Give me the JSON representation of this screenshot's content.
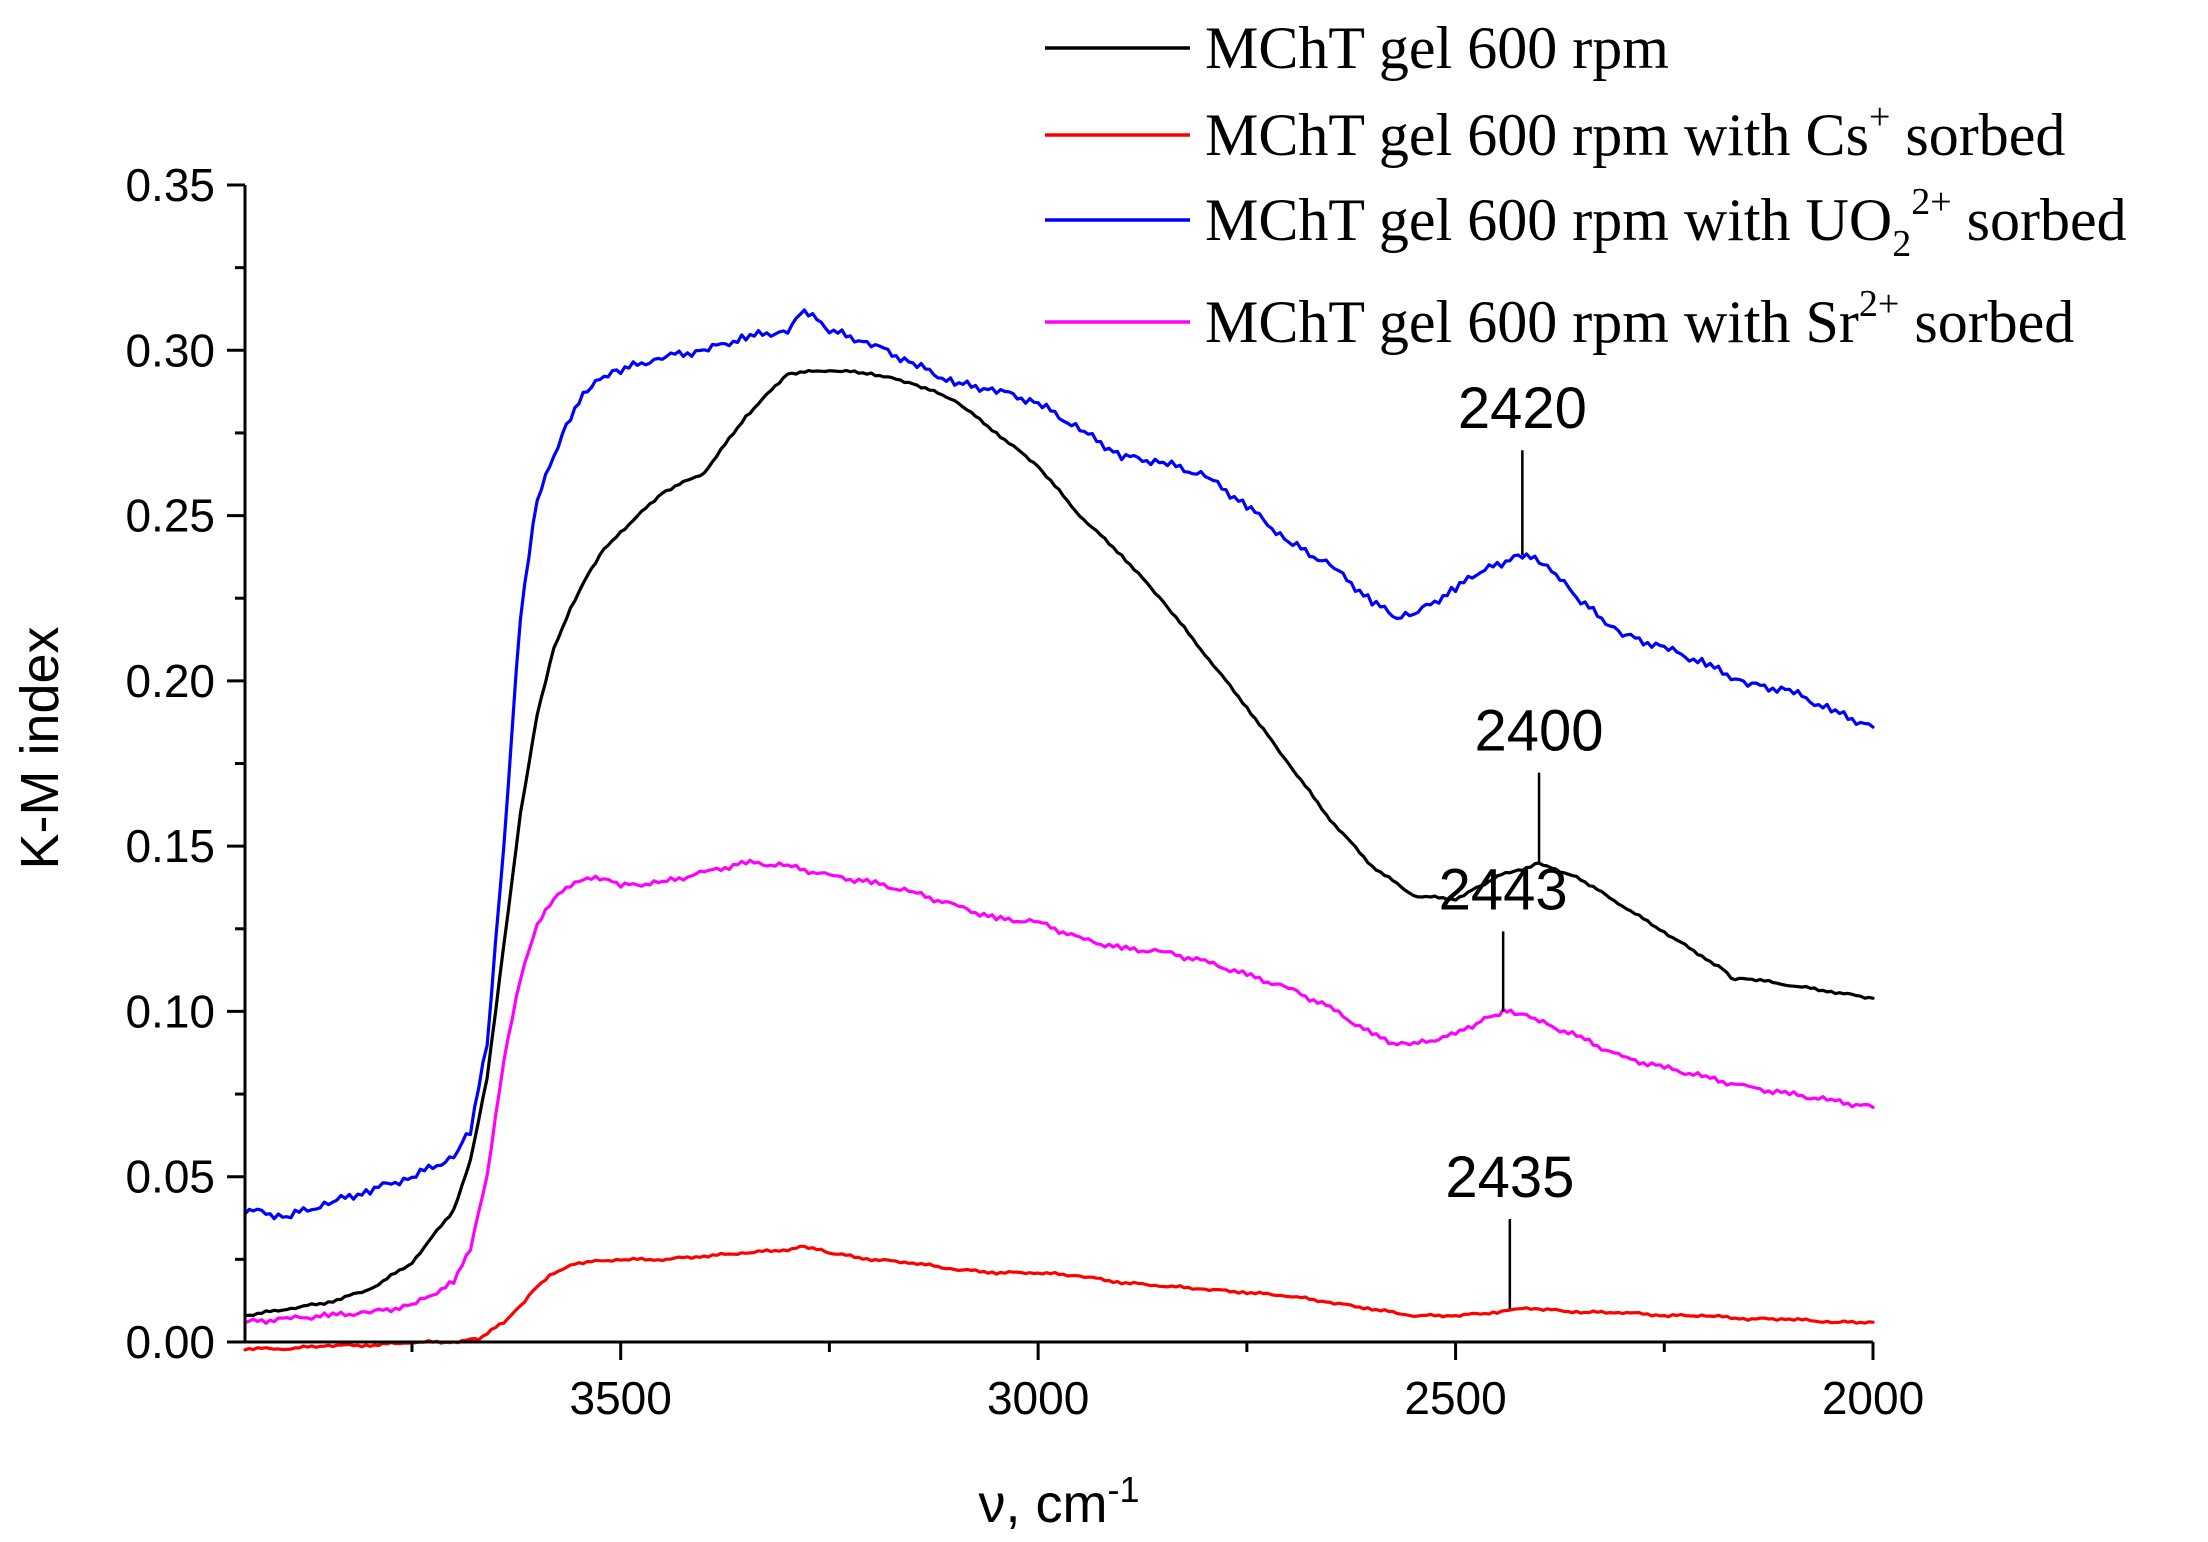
{
  "chart_data": {
    "type": "line",
    "title": "",
    "xlabel": "ν, cm",
    "xlabel_sup": "-1",
    "ylabel": "K-M index",
    "xlim": [
      3950,
      2000
    ],
    "ylim": [
      0,
      0.35
    ],
    "x_ticks": [
      3500,
      3000,
      2500,
      2000
    ],
    "x_tick_labels": [
      "3500",
      "3000",
      "2500",
      "2000"
    ],
    "x_minor_ticks": [
      3750,
      3250,
      2750,
      2250
    ],
    "y_ticks": [
      0,
      0.05,
      0.1,
      0.15,
      0.2,
      0.25,
      0.3,
      0.35
    ],
    "y_tick_labels": [
      "0.00",
      "0.05",
      "0.10",
      "0.15",
      "0.20",
      "0.25",
      "0.30",
      "0.35"
    ],
    "grid": false,
    "legend_position": "top-right",
    "series": [
      {
        "name": "MChT gel 600 rpm",
        "label_main": "MChT gel 600 rpm",
        "label_tail": "",
        "color": "#000000",
        "x": [
          3950,
          3900,
          3850,
          3800,
          3750,
          3700,
          3680,
          3660,
          3640,
          3620,
          3600,
          3580,
          3560,
          3540,
          3520,
          3500,
          3450,
          3400,
          3350,
          3300,
          3250,
          3200,
          3150,
          3100,
          3050,
          3000,
          2950,
          2900,
          2850,
          2800,
          2750,
          2700,
          2650,
          2600,
          2550,
          2500,
          2470,
          2440,
          2420,
          2400,
          2380,
          2350,
          2300,
          2250,
          2200,
          2175,
          2170,
          2150,
          2100,
          2050,
          2000
        ],
        "y": [
          0.008,
          0.01,
          0.012,
          0.016,
          0.024,
          0.04,
          0.055,
          0.08,
          0.12,
          0.16,
          0.19,
          0.21,
          0.222,
          0.232,
          0.24,
          0.245,
          0.257,
          0.263,
          0.28,
          0.293,
          0.294,
          0.293,
          0.29,
          0.285,
          0.275,
          0.265,
          0.25,
          0.238,
          0.224,
          0.208,
          0.192,
          0.175,
          0.158,
          0.144,
          0.135,
          0.134,
          0.138,
          0.142,
          0.143,
          0.145,
          0.143,
          0.14,
          0.132,
          0.124,
          0.116,
          0.112,
          0.11,
          0.11,
          0.108,
          0.106,
          0.104
        ]
      },
      {
        "name": "MChT gel 600 rpm with Cs+ sorbed",
        "label_main": "MChT gel 600 rpm with Cs",
        "label_sup": "+",
        "label_tail": " sorbed",
        "color": "#ff0000",
        "x": [
          3950,
          3900,
          3850,
          3800,
          3750,
          3700,
          3670,
          3640,
          3620,
          3600,
          3580,
          3550,
          3500,
          3450,
          3400,
          3350,
          3300,
          3280,
          3250,
          3200,
          3150,
          3100,
          3050,
          3000,
          2950,
          2900,
          2850,
          2800,
          2750,
          2700,
          2650,
          2600,
          2550,
          2500,
          2450,
          2435,
          2400,
          2350,
          2300,
          2250,
          2200,
          2150,
          2100,
          2050,
          2000
        ],
        "y": [
          -0.002,
          -0.002,
          -0.001,
          -0.001,
          0,
          0,
          0.001,
          0.006,
          0.011,
          0.017,
          0.021,
          0.024,
          0.025,
          0.025,
          0.026,
          0.027,
          0.028,
          0.029,
          0.027,
          0.025,
          0.024,
          0.022,
          0.021,
          0.021,
          0.02,
          0.018,
          0.017,
          0.016,
          0.015,
          0.014,
          0.012,
          0.01,
          0.008,
          0.008,
          0.009,
          0.01,
          0.01,
          0.009,
          0.009,
          0.008,
          0.008,
          0.007,
          0.007,
          0.006,
          0.006
        ]
      },
      {
        "name": "MChT gel 600 rpm with UO2 2+ sorbed",
        "label_main": "MChT gel 600 rpm with UO",
        "label_sub": "2",
        "label_sup": "2+",
        "label_tail": " sorbed",
        "color": "#0000ff",
        "x": [
          3950,
          3900,
          3850,
          3800,
          3750,
          3700,
          3680,
          3660,
          3640,
          3620,
          3600,
          3580,
          3560,
          3540,
          3520,
          3500,
          3450,
          3400,
          3350,
          3300,
          3280,
          3250,
          3200,
          3150,
          3100,
          3050,
          3000,
          2950,
          2900,
          2850,
          2800,
          2750,
          2700,
          2650,
          2600,
          2570,
          2550,
          2500,
          2470,
          2440,
          2420,
          2400,
          2380,
          2350,
          2300,
          2250,
          2200,
          2150,
          2100,
          2050,
          2000
        ],
        "y": [
          0.04,
          0.038,
          0.042,
          0.046,
          0.05,
          0.056,
          0.064,
          0.09,
          0.15,
          0.22,
          0.255,
          0.268,
          0.28,
          0.288,
          0.292,
          0.294,
          0.298,
          0.3,
          0.304,
          0.306,
          0.312,
          0.306,
          0.302,
          0.296,
          0.29,
          0.288,
          0.284,
          0.276,
          0.268,
          0.266,
          0.262,
          0.253,
          0.242,
          0.235,
          0.224,
          0.219,
          0.22,
          0.228,
          0.233,
          0.236,
          0.238,
          0.236,
          0.232,
          0.224,
          0.214,
          0.21,
          0.205,
          0.199,
          0.197,
          0.191,
          0.186
        ]
      },
      {
        "name": "MChT gel 600 rpm with Sr2+ sorbed",
        "label_main": "MChT gel 600 rpm with Sr",
        "label_sup": "2+",
        "label_tail": " sorbed",
        "color": "#ff00ff",
        "x": [
          3950,
          3900,
          3850,
          3800,
          3750,
          3700,
          3680,
          3660,
          3640,
          3620,
          3600,
          3580,
          3560,
          3540,
          3520,
          3500,
          3450,
          3400,
          3350,
          3300,
          3250,
          3200,
          3150,
          3100,
          3050,
          3000,
          2950,
          2900,
          2850,
          2800,
          2750,
          2700,
          2650,
          2600,
          2570,
          2550,
          2500,
          2470,
          2443,
          2420,
          2400,
          2350,
          2300,
          2250,
          2200,
          2150,
          2100,
          2050,
          2000
        ],
        "y": [
          0.006,
          0.007,
          0.008,
          0.009,
          0.011,
          0.018,
          0.028,
          0.05,
          0.085,
          0.11,
          0.126,
          0.134,
          0.138,
          0.14,
          0.14,
          0.138,
          0.139,
          0.142,
          0.145,
          0.144,
          0.141,
          0.139,
          0.136,
          0.132,
          0.128,
          0.127,
          0.122,
          0.119,
          0.118,
          0.115,
          0.111,
          0.107,
          0.101,
          0.093,
          0.09,
          0.09,
          0.093,
          0.097,
          0.1,
          0.099,
          0.097,
          0.092,
          0.086,
          0.083,
          0.08,
          0.077,
          0.075,
          0.073,
          0.071
        ]
      }
    ],
    "annotations": [
      {
        "text": "2420",
        "x": 2420,
        "y": 0.238
      },
      {
        "text": "2400",
        "x": 2400,
        "y": 0.145
      },
      {
        "text": "2443",
        "x": 2443,
        "y": 0.1
      },
      {
        "text": "2435",
        "x": 2435,
        "y": 0.01
      }
    ]
  }
}
